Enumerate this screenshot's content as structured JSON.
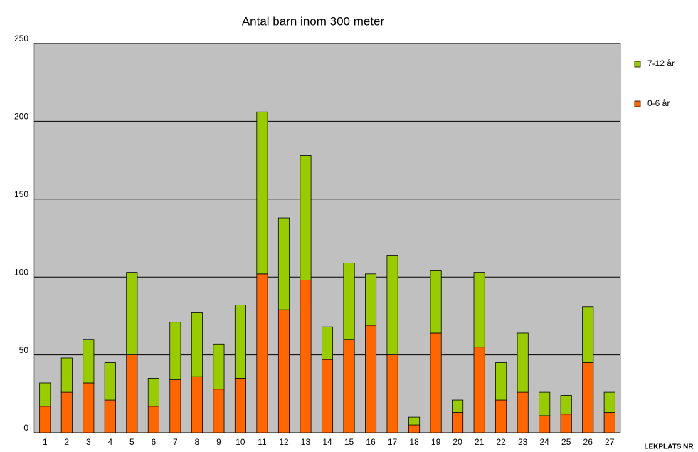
{
  "chart_data": {
    "type": "stacked_bar",
    "title": "Antal barn inom 300 meter",
    "x_label": "LEKPLATS NR",
    "categories": [
      "1",
      "2",
      "3",
      "4",
      "5",
      "6",
      "7",
      "8",
      "9",
      "10",
      "11",
      "12",
      "13",
      "14",
      "15",
      "16",
      "17",
      "18",
      "19",
      "20",
      "21",
      "22",
      "23",
      "24",
      "25",
      "26",
      "27"
    ],
    "series": [
      {
        "name": "0-6 år",
        "color": "#ff6600",
        "values": [
          17,
          26,
          32,
          21,
          50,
          17,
          34,
          36,
          28,
          35,
          102,
          79,
          98,
          47,
          60,
          69,
          50,
          5,
          64,
          13,
          55,
          21,
          26,
          11,
          12,
          45,
          13
        ]
      },
      {
        "name": "7-12 år",
        "color": "#99cc00",
        "values": [
          15,
          22,
          28,
          24,
          53,
          18,
          37,
          41,
          29,
          47,
          104,
          59,
          80,
          21,
          49,
          33,
          64,
          5,
          40,
          8,
          48,
          24,
          38,
          15,
          12,
          36,
          13
        ]
      }
    ],
    "ylim": [
      0,
      250
    ],
    "yticks": [
      0,
      50,
      100,
      150,
      200,
      250
    ],
    "grid": true
  }
}
